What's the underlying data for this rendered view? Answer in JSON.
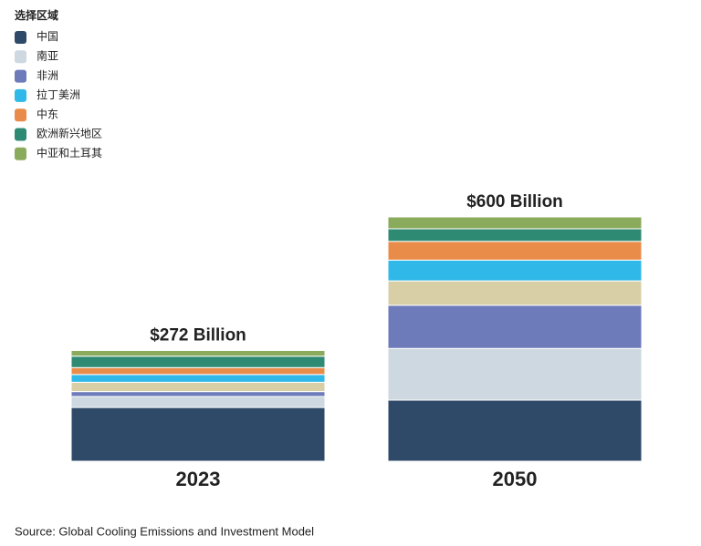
{
  "chart_data": {
    "type": "stacked-bar",
    "legend_title": "选择区域",
    "categories": [
      "2023",
      "2050"
    ],
    "series": [
      {
        "name": "中国",
        "color": "#2f4a68",
        "values": [
          132,
          150
        ]
      },
      {
        "name": "南亚",
        "color": "#cdd8e0",
        "values": [
          27,
          127
        ]
      },
      {
        "name": "非洲",
        "color": "#6e7bbb",
        "values": [
          12,
          106
        ]
      },
      {
        "name": null,
        "color": "#d9cfa7",
        "values": [
          23,
          60
        ]
      },
      {
        "name": "拉丁美洲",
        "color": "#2fb8e8",
        "values": [
          19,
          51
        ]
      },
      {
        "name": "中东",
        "color": "#e98c4a",
        "values": [
          17,
          46
        ]
      },
      {
        "name": "欧洲新兴地区",
        "color": "#2e8a72",
        "values": [
          28,
          31
        ]
      },
      {
        "name": "中亚和土耳其",
        "color": "#8aaa5c",
        "values": [
          14,
          29
        ]
      }
    ],
    "totals": {
      "values": [
        272,
        600
      ],
      "value_labels": [
        "$272 Billion",
        "$600 Billion"
      ]
    },
    "source": "Source: Global Cooling Emissions and Investment Model"
  }
}
